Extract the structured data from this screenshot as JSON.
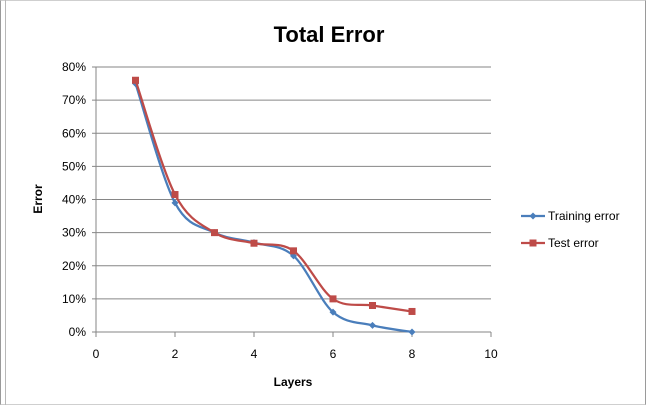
{
  "chart_data": {
    "type": "line",
    "title": "Total Error",
    "xlabel": "Layers",
    "ylabel": "Error",
    "xlim": [
      0,
      10
    ],
    "ylim": [
      0,
      0.8
    ],
    "x_ticks": [
      "0",
      "2",
      "4",
      "6",
      "8",
      "10"
    ],
    "y_ticks": [
      "0%",
      "10%",
      "20%",
      "30%",
      "40%",
      "50%",
      "60%",
      "70%",
      "80%"
    ],
    "grid": "horizontal",
    "legend_position": "right",
    "series": [
      {
        "name": "Training error",
        "color": "#4a7ebb",
        "marker": "diamond",
        "x": [
          1,
          2,
          3,
          4,
          5,
          6,
          7,
          8
        ],
        "y": [
          0.75,
          0.39,
          0.3,
          0.27,
          0.23,
          0.06,
          0.02,
          0.0
        ]
      },
      {
        "name": "Test error",
        "color": "#be4b48",
        "marker": "square",
        "x": [
          1,
          2,
          3,
          4,
          5,
          6,
          7,
          8
        ],
        "y": [
          0.76,
          0.415,
          0.3,
          0.268,
          0.245,
          0.1,
          0.08,
          0.062
        ]
      }
    ]
  }
}
